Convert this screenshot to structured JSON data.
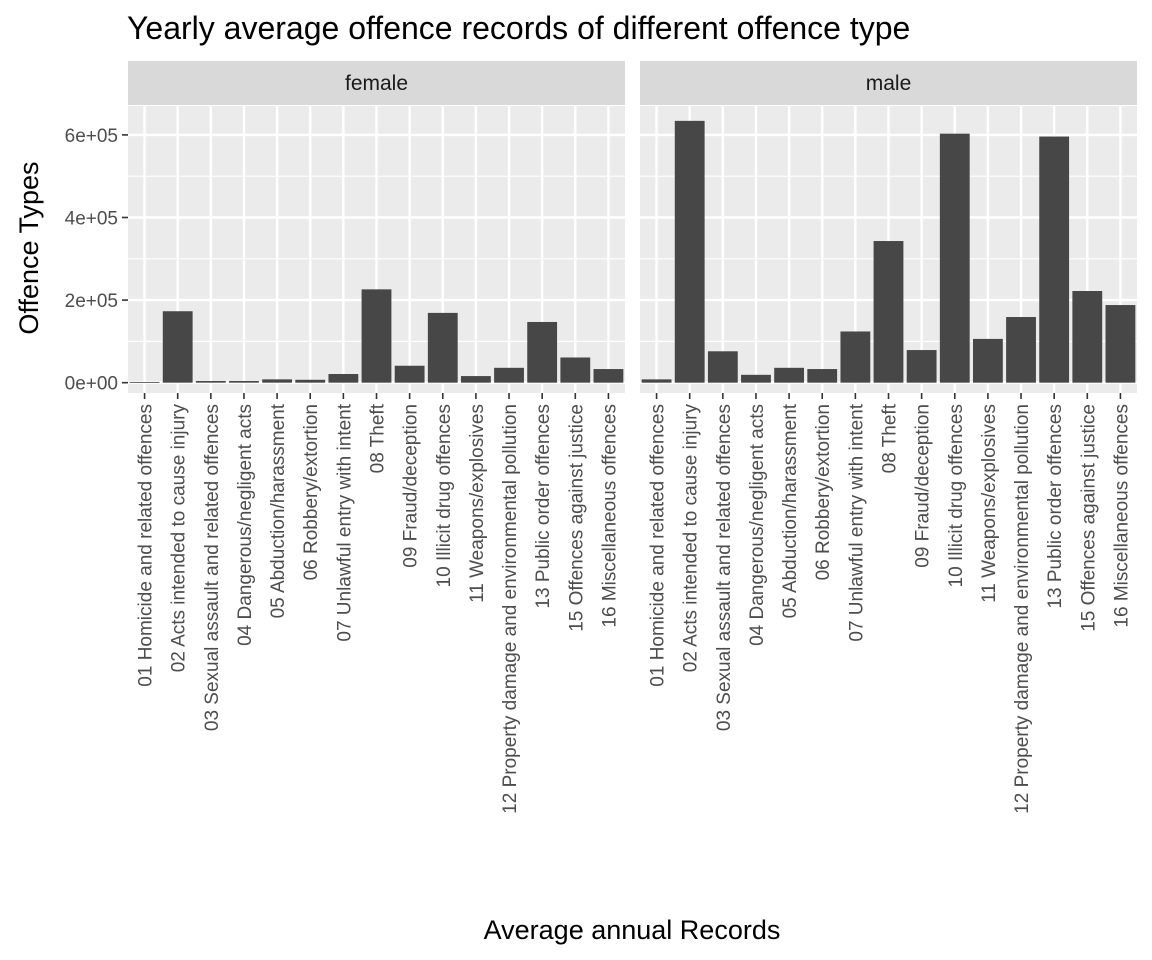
{
  "chart_data": {
    "type": "bar",
    "title": "Yearly average offence records of different offence type",
    "xlabel": "Average annual Records",
    "ylabel": "Offence Types",
    "ylim": [
      -25000,
      670000
    ],
    "yticks": [
      {
        "value": 0,
        "label": "0e+00"
      },
      {
        "value": 200000,
        "label": "2e+05"
      },
      {
        "value": 400000,
        "label": "4e+05"
      },
      {
        "value": 600000,
        "label": "6e+05"
      }
    ],
    "grid": true,
    "categories": [
      "01 Homicide and related offences",
      "02 Acts intended to cause injury",
      "03 Sexual assault and related offences",
      "04 Dangerous/negligent acts",
      "05 Abduction/harassment",
      "06 Robbery/extortion",
      "07 Unlawful entry with intent",
      "08 Theft",
      "09 Fraud/deception",
      "10 Illicit drug offences",
      "11 Weapons/explosives",
      "12 Property damage and environmental pollution",
      "13 Public order offences",
      "15 Offences against justice",
      "16 Miscellaneous offences"
    ],
    "panels": [
      {
        "strip": "female",
        "values": [
          1500,
          173000,
          4000,
          4000,
          8000,
          7000,
          21000,
          226000,
          41000,
          169000,
          16000,
          36000,
          147000,
          61000,
          33000
        ]
      },
      {
        "strip": "male",
        "values": [
          8000,
          634000,
          76000,
          19000,
          36000,
          33000,
          124000,
          343000,
          79000,
          603000,
          106000,
          159000,
          596000,
          222000,
          188000
        ]
      }
    ],
    "colors": {
      "bar": "#474747",
      "panel_bg": "#ebebeb",
      "grid": "#ffffff",
      "strip_bg": "#d9d9d9"
    }
  }
}
